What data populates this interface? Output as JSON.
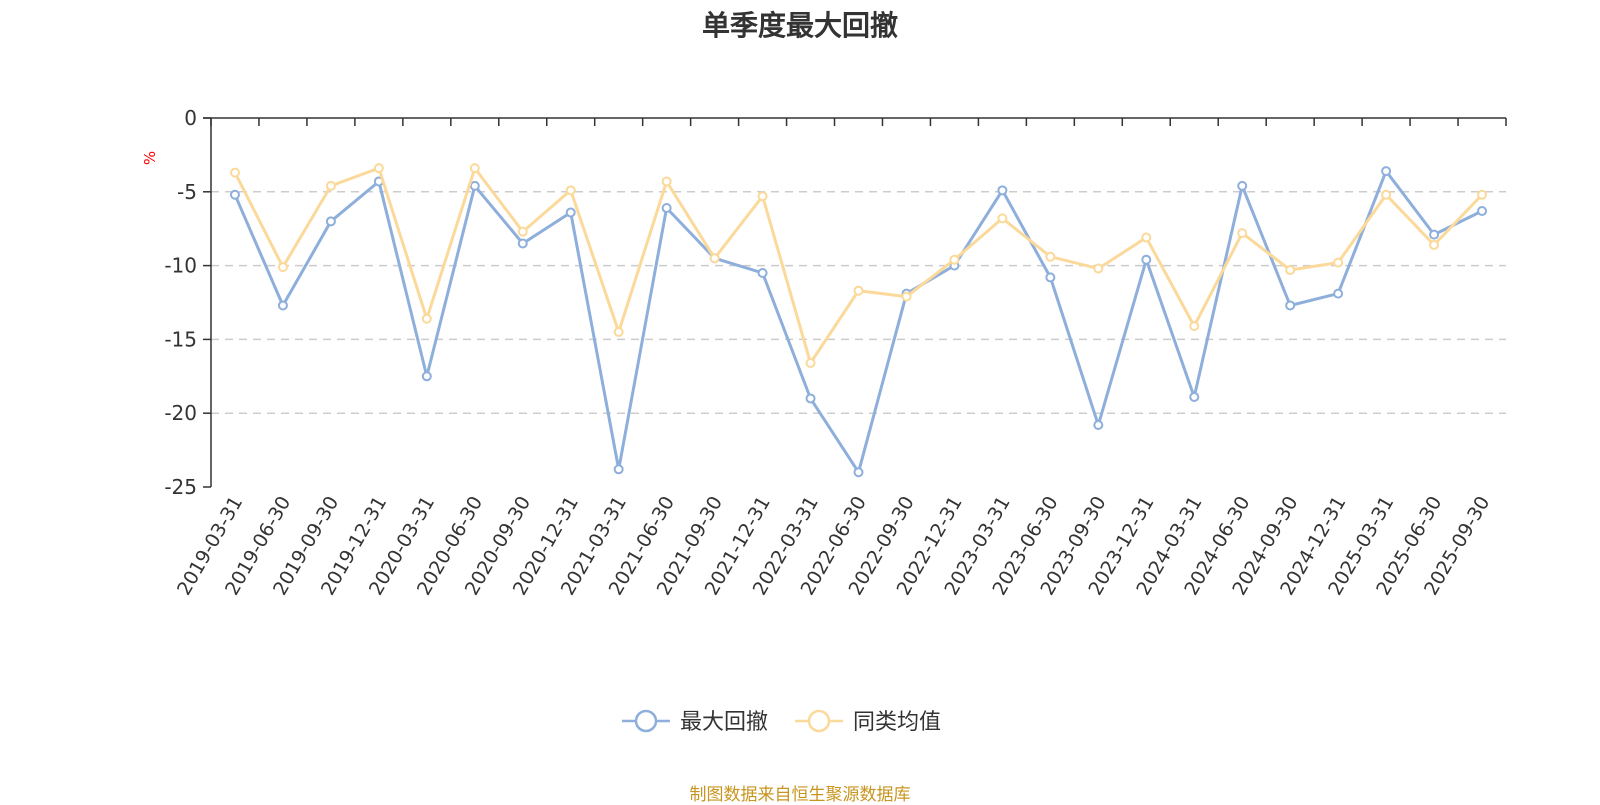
{
  "chart_data": {
    "type": "line",
    "title": "单季度最大回撤",
    "ylabel": "%",
    "xlabel": "",
    "ylim": [
      -25,
      0
    ],
    "yticks": [
      0,
      -5,
      -10,
      -15,
      -20,
      -25
    ],
    "grid": true,
    "legend_position": "bottom-center",
    "categories": [
      "2019-03-31",
      "2019-06-30",
      "2019-09-30",
      "2019-12-31",
      "2020-03-31",
      "2020-06-30",
      "2020-09-30",
      "2020-12-31",
      "2021-03-31",
      "2021-06-30",
      "2021-09-30",
      "2021-12-31",
      "2022-03-31",
      "2022-06-30",
      "2022-09-30",
      "2022-12-31",
      "2023-03-31",
      "2023-06-30",
      "2023-09-30",
      "2023-12-31",
      "2024-03-31",
      "2024-06-30",
      "2024-09-30",
      "2024-12-31",
      "2025-03-31",
      "2025-06-30",
      "2025-09-30"
    ],
    "series": [
      {
        "name": "最大回撤",
        "color": "#8eaedb",
        "values": [
          -5.2,
          -12.7,
          -7.0,
          -4.3,
          -17.5,
          -4.6,
          -8.5,
          -6.4,
          -23.8,
          -6.1,
          -9.5,
          -10.5,
          -19.0,
          -24.0,
          -11.9,
          -10.0,
          -4.9,
          -10.8,
          -20.8,
          -9.6,
          -18.9,
          -4.6,
          -12.7,
          -11.9,
          -3.6,
          -7.9,
          -6.3
        ]
      },
      {
        "name": "同类均值",
        "color": "#fbd99a",
        "values": [
          -3.7,
          -10.1,
          -4.6,
          -3.4,
          -13.6,
          -3.4,
          -7.7,
          -4.9,
          -14.5,
          -4.3,
          -9.5,
          -5.3,
          -16.6,
          -11.7,
          -12.1,
          -9.6,
          -6.8,
          -9.4,
          -10.2,
          -8.1,
          -14.1,
          -7.8,
          -10.3,
          -9.8,
          -5.2,
          -8.6,
          -5.2
        ]
      }
    ]
  },
  "footer": {
    "source": "制图数据来自恒生聚源数据库"
  }
}
